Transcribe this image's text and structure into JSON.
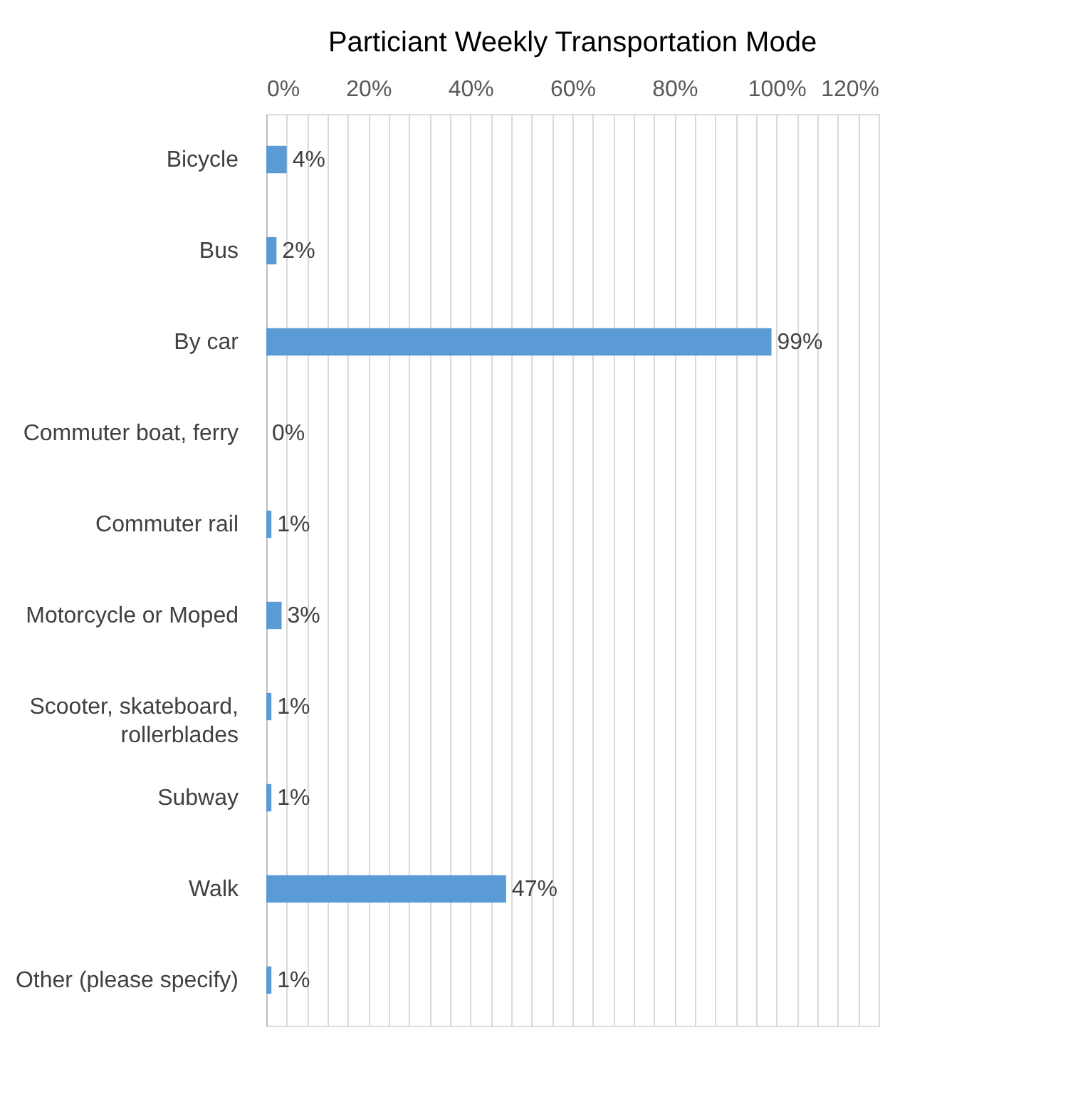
{
  "chart_data": {
    "type": "bar",
    "orientation": "horizontal",
    "title": "Particiant Weekly Transportation Mode",
    "categories": [
      "Bicycle",
      "Bus",
      "By car",
      "Commuter boat, ferry",
      "Commuter rail",
      "Motorcycle or Moped",
      "Scooter, skateboard, rollerblades",
      "Subway",
      "Walk",
      "Other (please specify)"
    ],
    "values": [
      4,
      2,
      99,
      0,
      1,
      3,
      1,
      1,
      47,
      1
    ],
    "color": "#5b9bd5",
    "xlim": [
      0,
      120
    ],
    "xticks": [
      {
        "value": 0,
        "label": "0%"
      },
      {
        "value": 4,
        "label": null
      },
      {
        "value": 8,
        "label": null
      },
      {
        "value": 12,
        "label": null
      },
      {
        "value": 16,
        "label": null
      },
      {
        "value": 20,
        "label": "20%"
      },
      {
        "value": 24,
        "label": null
      },
      {
        "value": 28,
        "label": null
      },
      {
        "value": 32,
        "label": null
      },
      {
        "value": 36,
        "label": null
      },
      {
        "value": 40,
        "label": "40%"
      },
      {
        "value": 44,
        "label": null
      },
      {
        "value": 48,
        "label": null
      },
      {
        "value": 52,
        "label": null
      },
      {
        "value": 56,
        "label": null
      },
      {
        "value": 60,
        "label": "60%"
      },
      {
        "value": 64,
        "label": null
      },
      {
        "value": 68,
        "label": null
      },
      {
        "value": 72,
        "label": null
      },
      {
        "value": 76,
        "label": null
      },
      {
        "value": 80,
        "label": "80%"
      },
      {
        "value": 84,
        "label": null
      },
      {
        "value": 88,
        "label": null
      },
      {
        "value": 92,
        "label": null
      },
      {
        "value": 96,
        "label": null
      },
      {
        "value": 100,
        "label": "100%"
      },
      {
        "value": 104,
        "label": null
      },
      {
        "value": 108,
        "label": null
      },
      {
        "value": 112,
        "label": null
      },
      {
        "value": 116,
        "label": null
      },
      {
        "value": 120,
        "label": "120%"
      }
    ],
    "grid": "x",
    "value_labels": [
      "4%",
      "2%",
      "99%",
      "0%",
      "1%",
      "3%",
      "1%",
      "1%",
      "47%",
      "1%"
    ]
  }
}
